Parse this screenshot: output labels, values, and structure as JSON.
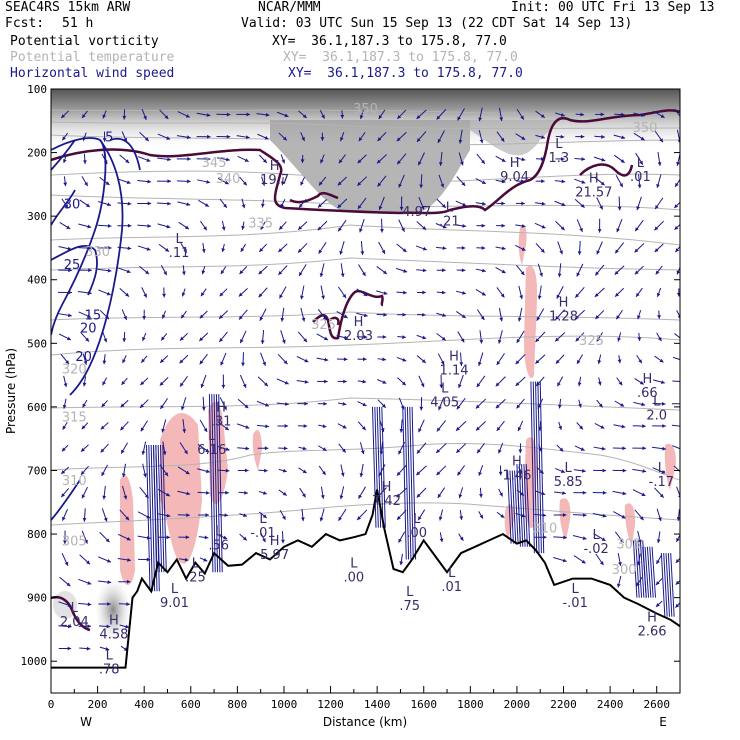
{
  "header": {
    "model": "SEAC4RS 15km ARW",
    "org": "NCAR/MMM",
    "init": "Init: 00 UTC Fri 13 Sep 13",
    "fcst_label": "Fcst:",
    "fcst_value": "51 h",
    "valid": "Valid: 03 UTC Sun 15 Sep 13 (22 CDT Sat 14 Sep 13)",
    "legend": [
      {
        "name": "Potential vorticity",
        "xy": "XY=  36.1,187.3 to 175.8, 77.0",
        "color": "#000000"
      },
      {
        "name": "Potential temperature",
        "xy": "XY=  36.1,187.3 to 175.8, 77.0",
        "color": "#b4b4b4"
      },
      {
        "name": "Horizontal wind speed",
        "xy": "XY=  36.1,187.3 to 175.8, 77.0",
        "color": "#1a1a8c"
      }
    ]
  },
  "chart_data": {
    "type": "cross-section",
    "xlabel": "Distance (km)",
    "ylabel": "Pressure (hPa)",
    "xlim": [
      0,
      2700
    ],
    "ylim": [
      1050,
      100
    ],
    "x_ticks": [
      0,
      200,
      400,
      600,
      800,
      1000,
      1200,
      1400,
      1600,
      1800,
      2000,
      2200,
      2400,
      2600
    ],
    "y_ticks": [
      100,
      200,
      300,
      400,
      500,
      600,
      700,
      800,
      900,
      1000
    ],
    "x_end_labels": {
      "left": "W",
      "right": "E"
    },
    "terrain": [
      [
        0,
        1010
      ],
      [
        320,
        1010
      ],
      [
        350,
        900
      ],
      [
        370,
        890
      ],
      [
        390,
        870
      ],
      [
        430,
        890
      ],
      [
        460,
        845
      ],
      [
        500,
        860
      ],
      [
        540,
        840
      ],
      [
        580,
        870
      ],
      [
        620,
        845
      ],
      [
        660,
        862
      ],
      [
        700,
        830
      ],
      [
        760,
        850
      ],
      [
        820,
        848
      ],
      [
        880,
        830
      ],
      [
        940,
        840
      ],
      [
        1000,
        820
      ],
      [
        1060,
        810
      ],
      [
        1120,
        820
      ],
      [
        1180,
        800
      ],
      [
        1240,
        810
      ],
      [
        1300,
        805
      ],
      [
        1350,
        800
      ],
      [
        1380,
        770
      ],
      [
        1400,
        730
      ],
      [
        1430,
        790
      ],
      [
        1470,
        855
      ],
      [
        1510,
        860
      ],
      [
        1550,
        840
      ],
      [
        1600,
        810
      ],
      [
        1660,
        840
      ],
      [
        1700,
        860
      ],
      [
        1760,
        830
      ],
      [
        1820,
        820
      ],
      [
        1880,
        810
      ],
      [
        1940,
        800
      ],
      [
        2000,
        815
      ],
      [
        2040,
        810
      ],
      [
        2080,
        825
      ],
      [
        2120,
        845
      ],
      [
        2160,
        880
      ],
      [
        2240,
        870
      ],
      [
        2320,
        870
      ],
      [
        2400,
        880
      ],
      [
        2460,
        900
      ],
      [
        2520,
        910
      ],
      [
        2600,
        925
      ],
      [
        2660,
        935
      ],
      [
        2700,
        945
      ]
    ],
    "theta_labels": [
      {
        "text": "350",
        "x": 1350,
        "y": 130
      },
      {
        "text": "350",
        "x": 2550,
        "y": 160
      },
      {
        "text": "345",
        "x": 700,
        "y": 215
      },
      {
        "text": "340",
        "x": 760,
        "y": 240
      },
      {
        "text": "335",
        "x": 900,
        "y": 310
      },
      {
        "text": "330",
        "x": 200,
        "y": 355
      },
      {
        "text": "325",
        "x": 1170,
        "y": 470
      },
      {
        "text": "325",
        "x": 2320,
        "y": 495
      },
      {
        "text": "320",
        "x": 100,
        "y": 540
      },
      {
        "text": "315",
        "x": 100,
        "y": 615
      },
      {
        "text": "310",
        "x": 100,
        "y": 715
      },
      {
        "text": "305",
        "x": 100,
        "y": 810
      },
      {
        "text": "310",
        "x": 2120,
        "y": 790
      },
      {
        "text": "305",
        "x": 2480,
        "y": 815
      },
      {
        "text": "300",
        "x": 2460,
        "y": 855
      }
    ],
    "wind_labels": [
      {
        "text": "5",
        "x": 250,
        "y": 175
      },
      {
        "text": "30",
        "x": 90,
        "y": 280
      },
      {
        "text": "25",
        "x": 90,
        "y": 375
      },
      {
        "text": "20",
        "x": 160,
        "y": 475
      },
      {
        "text": "15",
        "x": 180,
        "y": 455
      },
      {
        "text": "20",
        "x": 140,
        "y": 520
      }
    ],
    "extrema": [
      {
        "mark": "H",
        "value": "19.7",
        "x": 960,
        "y": 240,
        "color": "#3a2a6a"
      },
      {
        "mark": "H",
        "value": "9.04",
        "x": 1990,
        "y": 235,
        "color": "#3a2a6a"
      },
      {
        "mark": "L",
        "value": "1.3",
        "x": 2180,
        "y": 205,
        "color": "#3a2a6a"
      },
      {
        "mark": "H",
        "value": "21.57",
        "x": 2330,
        "y": 260,
        "color": "#3a2a6a"
      },
      {
        "mark": "L",
        "value": ".01",
        "x": 2530,
        "y": 235,
        "color": "#3a2a6a"
      },
      {
        "mark": "L",
        "value": ".21",
        "x": 1710,
        "y": 305,
        "color": "#3a2a6a"
      },
      {
        "mark": "",
        "value": "4.97",
        "x": 1570,
        "y": 290,
        "color": "#3a2a6a"
      },
      {
        "mark": "L",
        "value": ".11",
        "x": 550,
        "y": 355,
        "color": "#3a2a6a"
      },
      {
        "mark": "H",
        "value": "2.03",
        "x": 1320,
        "y": 485,
        "color": "#3a2a6a"
      },
      {
        "mark": "H",
        "value": "1.28",
        "x": 2200,
        "y": 455,
        "color": "#3a2a6a"
      },
      {
        "mark": "H",
        "value": "1.14",
        "x": 1730,
        "y": 540,
        "color": "#3a2a6a"
      },
      {
        "mark": "L",
        "value": "4.05",
        "x": 1690,
        "y": 590,
        "color": "#3a2a6a"
      },
      {
        "mark": "H",
        "value": ".66",
        "x": 2560,
        "y": 575,
        "color": "#3a2a6a"
      },
      {
        "mark": "L",
        "value": "2.0",
        "x": 2600,
        "y": 610,
        "color": "#3a2a6a"
      },
      {
        "mark": "H",
        "value": ".31",
        "x": 730,
        "y": 620,
        "color": "#3a2a6a"
      },
      {
        "mark": "L",
        "value": "6.16",
        "x": 690,
        "y": 665,
        "color": "#3a2a6a"
      },
      {
        "mark": "H",
        "value": "1.46",
        "x": 2000,
        "y": 705,
        "color": "#3a2a6a"
      },
      {
        "mark": "L",
        "value": "5.85",
        "x": 2220,
        "y": 715,
        "color": "#3a2a6a"
      },
      {
        "mark": "L",
        "value": "-.17",
        "x": 2620,
        "y": 715,
        "color": "#3a2a6a"
      },
      {
        "mark": "H",
        "value": "7.42",
        "x": 1440,
        "y": 745,
        "color": "#3a2a6a"
      },
      {
        "mark": "L",
        "value": ".00",
        "x": 1570,
        "y": 795,
        "color": "#3a2a6a"
      },
      {
        "mark": "L",
        "value": "-.01",
        "x": 910,
        "y": 795,
        "color": "#3a2a6a"
      },
      {
        "mark": "L",
        "value": ".56",
        "x": 720,
        "y": 815,
        "color": "#3a2a6a"
      },
      {
        "mark": "H",
        "value": "5.97",
        "x": 960,
        "y": 830,
        "color": "#3a2a6a"
      },
      {
        "mark": "L",
        "value": "-.02",
        "x": 2340,
        "y": 820,
        "color": "#3a2a6a"
      },
      {
        "mark": "L",
        "value": ".25",
        "x": 620,
        "y": 865,
        "color": "#3a2a6a"
      },
      {
        "mark": "L",
        "value": ".00",
        "x": 1300,
        "y": 865,
        "color": "#3a2a6a"
      },
      {
        "mark": "L",
        "value": ".01",
        "x": 1720,
        "y": 880,
        "color": "#3a2a6a"
      },
      {
        "mark": "L",
        "value": "9.01",
        "x": 530,
        "y": 905,
        "color": "#3a2a6a"
      },
      {
        "mark": "L",
        "value": ".75",
        "x": 1540,
        "y": 910,
        "color": "#3a2a6a"
      },
      {
        "mark": "L",
        "value": "-.01",
        "x": 2250,
        "y": 905,
        "color": "#3a2a6a"
      },
      {
        "mark": "H",
        "value": "2.66",
        "x": 2580,
        "y": 950,
        "color": "#3a2a6a"
      },
      {
        "mark": "L",
        "value": "2.04",
        "x": 100,
        "y": 935,
        "color": "#3a2a6a"
      },
      {
        "mark": "H",
        "value": "4.58",
        "x": 270,
        "y": 955,
        "color": "#3a2a6a"
      },
      {
        "mark": "L",
        "value": ".78",
        "x": 250,
        "y": 1010,
        "color": "#3a2a6a"
      }
    ],
    "grid": false
  },
  "colors": {
    "pv_contour": "#4a0a3a",
    "theta_contour": "#b4b4b4",
    "wind": "#1a1a8c",
    "pink_fill": "#f4b8b8",
    "terrain": "#000000"
  }
}
